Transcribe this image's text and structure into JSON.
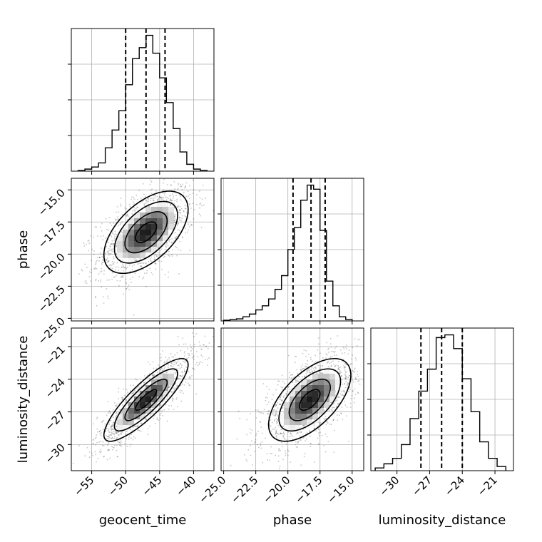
{
  "chart_data": {
    "type": "corner",
    "parameters": [
      "geocent_time",
      "phase",
      "luminosity_distance"
    ],
    "axis_labels": {
      "x": [
        "geocent_time",
        "phase",
        "luminosity_distance"
      ],
      "y_row2": "phase",
      "y_row3": "luminosity_distance"
    },
    "ranges": {
      "geocent_time": [
        -58,
        -37
      ],
      "phase": [
        -25.2,
        -14.1
      ],
      "luminosity_distance": [
        -32.4,
        -19.3
      ]
    },
    "ticks": {
      "geocent_time": [
        {
          "v": -55,
          "label": "−55"
        },
        {
          "v": -50,
          "label": "−50"
        },
        {
          "v": -45,
          "label": "−45"
        },
        {
          "v": -40,
          "label": "−40"
        }
      ],
      "phase_x": [
        {
          "v": -25.0,
          "label": "−25.0"
        },
        {
          "v": -22.5,
          "label": "−22.5"
        },
        {
          "v": -20.0,
          "label": "−20.0"
        },
        {
          "v": -17.5,
          "label": "−17.5"
        },
        {
          "v": -15.0,
          "label": "−15.0"
        }
      ],
      "phase_y": [
        {
          "v": -15.0,
          "label": "−15.0"
        },
        {
          "v": -17.5,
          "label": "−17.5"
        },
        {
          "v": -20.0,
          "label": "−20.0"
        },
        {
          "v": -22.5,
          "label": "−22.5"
        },
        {
          "v": -25.0,
          "label": "−25.0"
        }
      ],
      "luminosity_distance_x": [
        {
          "v": -30,
          "label": "−30"
        },
        {
          "v": -27,
          "label": "−27"
        },
        {
          "v": -24,
          "label": "−24"
        },
        {
          "v": -21,
          "label": "−21"
        }
      ],
      "luminosity_distance_y": [
        {
          "v": -21,
          "label": "−21"
        },
        {
          "v": -24,
          "label": "−24"
        },
        {
          "v": -27,
          "label": "−27"
        },
        {
          "v": -30,
          "label": "−30"
        }
      ]
    },
    "quantiles": {
      "geocent_time": [
        -50.0,
        -47.0,
        -44.2
      ],
      "phase": [
        -19.6,
        -18.2,
        -17.1
      ],
      "luminosity_distance": [
        -27.8,
        -25.9,
        -24.0
      ]
    },
    "histograms": {
      "geocent_time": {
        "edges": [
          -57,
          -56,
          -55,
          -54,
          -53,
          -52,
          -51,
          -50,
          -49,
          -48,
          -47,
          -46,
          -45,
          -44,
          -43,
          -42,
          -41,
          -40,
          -39,
          -38
        ],
        "counts": [
          0.5,
          1.5,
          3,
          6,
          17,
          30,
          44,
          63,
          82,
          90,
          99,
          86,
          68,
          50,
          31,
          14,
          5,
          1.5,
          0.5
        ]
      },
      "phase": {
        "edges": [
          -25.0,
          -24.5,
          -24.0,
          -23.5,
          -23.0,
          -22.5,
          -22.0,
          -21.5,
          -21.0,
          -20.5,
          -20.0,
          -19.5,
          -19.0,
          -18.5,
          -18.0,
          -17.5,
          -17.0,
          -16.5,
          -16.0,
          -15.5,
          -15.0
        ],
        "counts": [
          0.5,
          1,
          1.5,
          3,
          5,
          8,
          11,
          16,
          23,
          33,
          52,
          68,
          88,
          99,
          96,
          66,
          29,
          11,
          3,
          1
        ]
      },
      "luminosity_distance": {
        "edges": [
          -32,
          -31.2,
          -30.4,
          -29.6,
          -28.8,
          -28.0,
          -27.2,
          -26.4,
          -25.6,
          -24.8,
          -24.0,
          -23.2,
          -22.4,
          -21.6,
          -20.8,
          -20.0
        ],
        "counts": [
          2,
          5,
          9,
          19,
          38,
          58,
          74,
          97,
          99,
          89,
          67,
          43,
          21,
          9,
          3
        ]
      }
    },
    "joint_2d": [
      {
        "x": "geocent_time",
        "y": "phase",
        "mean": [
          -47.0,
          -18.3
        ],
        "sd": [
          3.1,
          1.6
        ],
        "rho": 0.55
      },
      {
        "x": "geocent_time",
        "y": "luminosity_distance",
        "mean": [
          -47.0,
          -25.9
        ],
        "sd": [
          3.1,
          1.9
        ],
        "rho": 0.85
      },
      {
        "x": "phase",
        "y": "luminosity_distance",
        "mean": [
          -18.3,
          -25.9
        ],
        "sd": [
          1.6,
          1.9
        ],
        "rho": 0.6
      }
    ],
    "grid": true
  }
}
